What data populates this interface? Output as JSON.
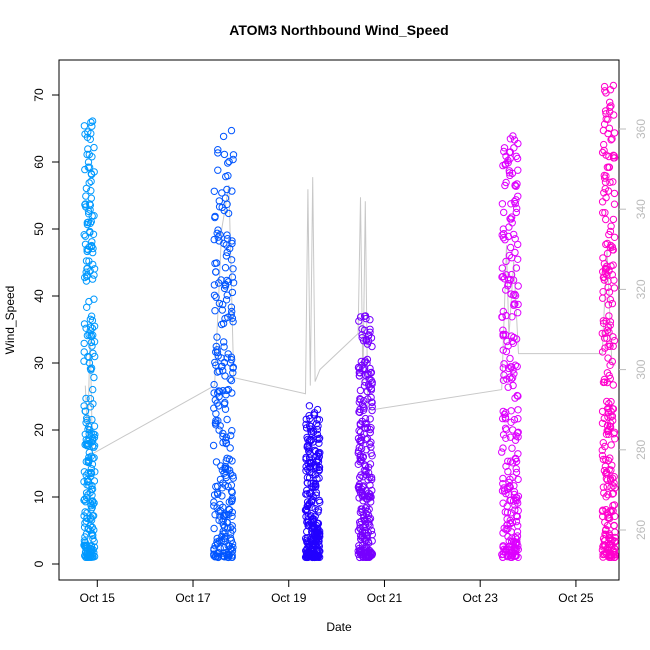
{
  "chart_data": {
    "type": "scatter",
    "title": "ATOM3 Northbound Wind_Speed",
    "xlabel": "Date",
    "ylabel": "Wind_Speed",
    "x_ticks": [
      "Oct 15",
      "Oct 17",
      "Oct 19",
      "Oct 21",
      "Oct 23",
      "Oct 25"
    ],
    "xlim_days": [
      14.2,
      25.9
    ],
    "ylim": [
      0,
      75
    ],
    "y_ticks": [
      0,
      10,
      20,
      30,
      40,
      50,
      60,
      70
    ],
    "y2lim": [
      250,
      370
    ],
    "y2_ticks": [
      260,
      280,
      300,
      320,
      340,
      360
    ],
    "grid": false,
    "marker": "open-circle",
    "series": [
      {
        "color": "#0099FF",
        "x_range": [
          14.72,
          14.95
        ],
        "y_range": [
          1,
          67
        ]
      },
      {
        "color": "#0055FF",
        "x_range": [
          17.43,
          17.85
        ],
        "y_range": [
          1,
          65.5
        ]
      },
      {
        "color": "#2200FF",
        "x_range": [
          19.35,
          19.65
        ],
        "y_range": [
          1,
          24
        ]
      },
      {
        "color": "#7700FF",
        "x_range": [
          20.45,
          20.75
        ],
        "y_range": [
          1,
          37.5
        ]
      },
      {
        "color": "#DD00FF",
        "x_range": [
          23.45,
          23.8
        ],
        "y_range": [
          1,
          64.5
        ]
      },
      {
        "color": "#FF00CC",
        "x_range": [
          25.55,
          25.82
        ],
        "y_range": [
          1,
          72.5
        ]
      }
    ],
    "secondary_line": {
      "color": "#C8C8C8",
      "points": [
        [
          14.75,
          296
        ],
        [
          14.8,
          283
        ],
        [
          14.85,
          309
        ],
        [
          14.9,
          279
        ],
        [
          17.45,
          296
        ],
        [
          17.6,
          335
        ],
        [
          17.75,
          346
        ],
        [
          17.85,
          298
        ],
        [
          19.35,
          294
        ],
        [
          19.4,
          345
        ],
        [
          19.45,
          296
        ],
        [
          19.5,
          348
        ],
        [
          19.55,
          297
        ],
        [
          19.65,
          300
        ],
        [
          20.45,
          309
        ],
        [
          20.5,
          343
        ],
        [
          20.55,
          296
        ],
        [
          20.6,
          342
        ],
        [
          20.65,
          291
        ],
        [
          20.75,
          290
        ],
        [
          23.45,
          295
        ],
        [
          23.55,
          331
        ],
        [
          23.6,
          308
        ],
        [
          23.7,
          327
        ],
        [
          23.8,
          304
        ],
        [
          25.55,
          304
        ],
        [
          25.65,
          330
        ],
        [
          25.75,
          302
        ],
        [
          25.82,
          301
        ]
      ]
    }
  }
}
